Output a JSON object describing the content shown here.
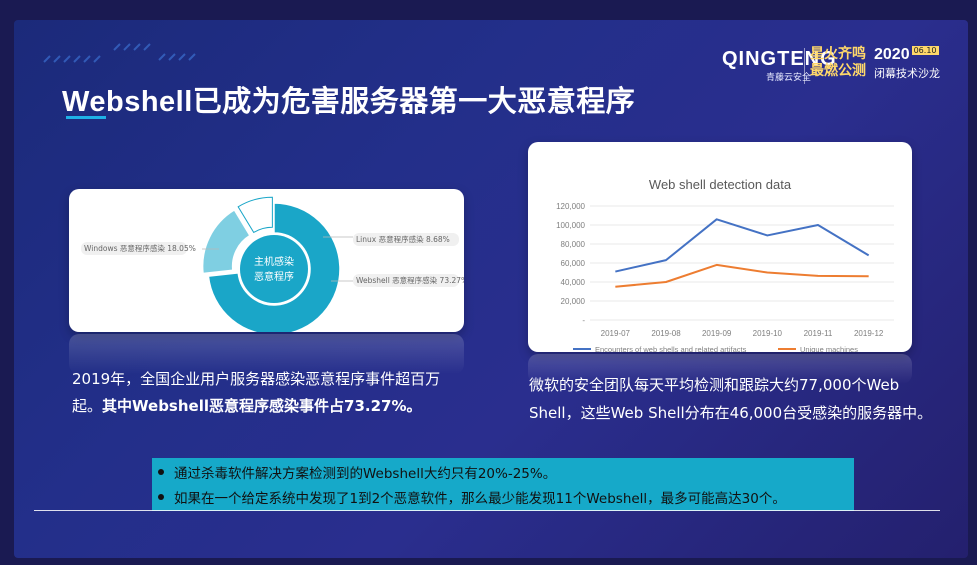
{
  "title": "Webshell已成为危害服务器第一大恶意程序",
  "brand": {
    "logo": "QINGTENG",
    "logo_sub": "青藤云安全",
    "slogan_line1": "星火齐鸣",
    "slogan_line2": "最燃公测",
    "event_year": "2020",
    "event_date": "06.10",
    "event_name": "闭幕技术沙龙"
  },
  "colors": {
    "accent": "#1fb1e6",
    "pie_main": "#1aa6c8",
    "pie_light": "#7fcfe2",
    "line_blue": "#4472c4",
    "line_orange": "#ed7d31"
  },
  "chart_data": [
    {
      "type": "pie",
      "title": "",
      "center_label_line1": "主机感染",
      "center_label_line2": "恶意程序",
      "slices": [
        {
          "label": "Webshell 恶意程序感染 73.27%",
          "value": 73.27
        },
        {
          "label": "Windows 恶意程序感染 18.05%",
          "value": 18.05
        },
        {
          "label": "Linux 恶意程序感染 8.68%",
          "value": 8.68
        }
      ]
    },
    {
      "type": "line",
      "title": "Web shell detection data",
      "categories": [
        "2019-07",
        "2019-08",
        "2019-09",
        "2019-10",
        "2019-11",
        "2019-12"
      ],
      "ylim": [
        0,
        120000
      ],
      "yticks": [
        "-",
        "20,000",
        "40,000",
        "60,000",
        "80,000",
        "100,000",
        "120,000"
      ],
      "series": [
        {
          "name": "Encounters of web shells and related artifacts",
          "values": [
            51000,
            63000,
            106000,
            89000,
            100000,
            68000
          ]
        },
        {
          "name": "Unique machines",
          "values": [
            35000,
            40000,
            58000,
            50000,
            46500,
            46000
          ]
        }
      ],
      "legend": "bottom",
      "grid": true
    }
  ],
  "left_text": {
    "line1": "2019年，全国企业用户服务器感染恶意程序事件超百万",
    "line2_prefix": "起。",
    "line2_strong": "其中Webshell恶意程序感染事件占73.27%。"
  },
  "right_text": {
    "line1": "微软的安全团队每天平均检测和跟踪大约77,000个Web",
    "line2": "Shell，这些Web Shell分布在46,000台受感染的服务器中。"
  },
  "bullets": [
    "通过杀毒软件解决方案检测到的Webshell大约只有20%-25%。",
    "如果在一个给定系统中发现了1到2个恶意软件，那么最少能发现11个Webshell，最多可能高达30个。"
  ]
}
